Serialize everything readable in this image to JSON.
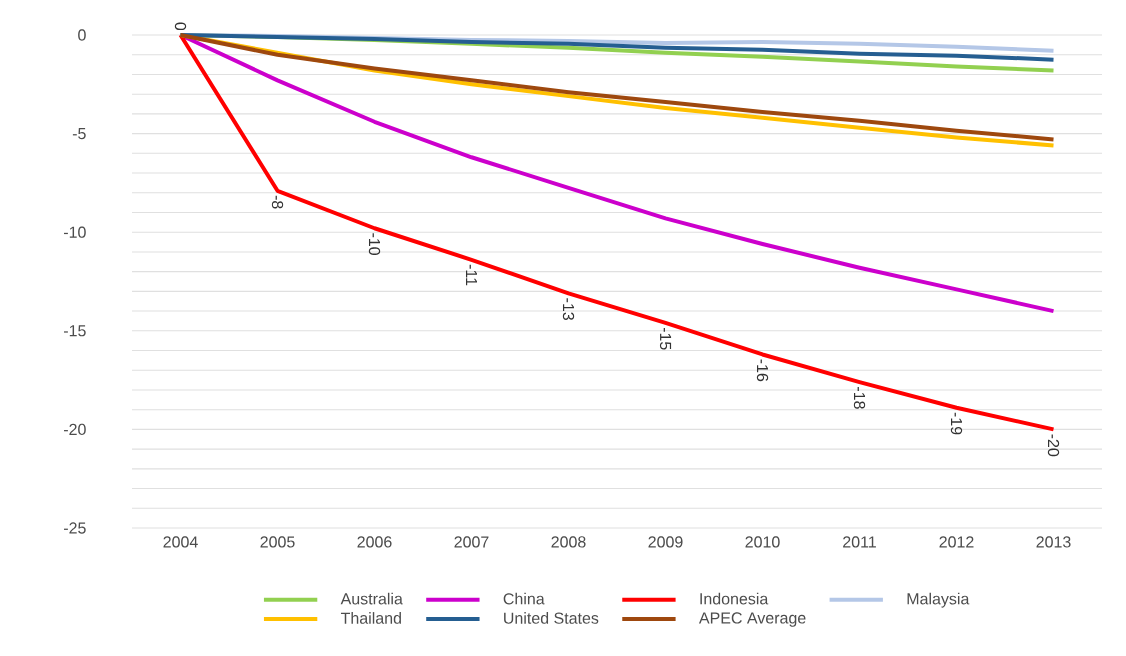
{
  "chart_data": {
    "type": "line",
    "categories": [
      "2004",
      "2005",
      "2006",
      "2007",
      "2008",
      "2009",
      "2010",
      "2011",
      "2012",
      "2013"
    ],
    "series": [
      {
        "name": "Australia",
        "color": "#92d050",
        "values": [
          0,
          -0.1,
          -0.25,
          -0.45,
          -0.65,
          -0.9,
          -1.1,
          -1.35,
          -1.6,
          -1.8
        ]
      },
      {
        "name": "China",
        "color": "#cc00cc",
        "values": [
          0,
          -2.3,
          -4.4,
          -6.2,
          -7.75,
          -9.3,
          -10.6,
          -11.8,
          -12.9,
          -14.0
        ]
      },
      {
        "name": "Indonesia",
        "color": "#ff0000",
        "values": [
          0,
          -7.9,
          -9.8,
          -11.4,
          -13.1,
          -14.6,
          -16.2,
          -17.6,
          -18.9,
          -20.0
        ],
        "value_labels": [
          "0",
          "-8",
          "-10",
          "-11",
          "-13",
          "-15",
          "-16",
          "-18",
          "-19",
          "-20"
        ]
      },
      {
        "name": "Malaysia",
        "color": "#b4c7e7",
        "values": [
          0,
          -0.05,
          -0.15,
          -0.25,
          -0.3,
          -0.4,
          -0.35,
          -0.45,
          -0.6,
          -0.8
        ]
      },
      {
        "name": "Thailand",
        "color": "#ffc000",
        "values": [
          0,
          -0.9,
          -1.8,
          -2.5,
          -3.1,
          -3.7,
          -4.2,
          -4.7,
          -5.2,
          -5.6
        ]
      },
      {
        "name": "United States",
        "color": "#255e91",
        "values": [
          0,
          -0.1,
          -0.2,
          -0.35,
          -0.45,
          -0.65,
          -0.75,
          -0.95,
          -1.05,
          -1.25
        ]
      },
      {
        "name": "APEC Average",
        "color": "#9e480e",
        "values": [
          0,
          -1.0,
          -1.7,
          -2.3,
          -2.9,
          -3.4,
          -3.9,
          -4.35,
          -4.85,
          -5.3
        ]
      }
    ],
    "ylim": [
      -25,
      0
    ],
    "yticks": [
      -25,
      {
        "value": -24,
        "label": null
      },
      {
        "value": -23,
        "label": null
      },
      {
        "value": -22,
        "label": null
      },
      {
        "value": -21,
        "label": null
      },
      -20,
      {
        "value": -19,
        "label": null
      },
      {
        "value": -18,
        "label": null
      },
      {
        "value": -17,
        "label": null
      },
      {
        "value": -16,
        "label": null
      },
      -15,
      {
        "value": -14,
        "label": null
      },
      {
        "value": -13,
        "label": null
      },
      {
        "value": -12,
        "label": null
      },
      {
        "value": -11,
        "label": null
      },
      -10,
      {
        "value": -9,
        "label": null
      },
      {
        "value": -8,
        "label": null
      },
      {
        "value": -7,
        "label": null
      },
      {
        "value": -6,
        "label": null
      },
      -5,
      {
        "value": -4,
        "label": null
      },
      {
        "value": -3,
        "label": null
      },
      {
        "value": -2,
        "label": null
      },
      {
        "value": -1,
        "label": null
      },
      0
    ],
    "grid": true,
    "legend": "bottom"
  }
}
